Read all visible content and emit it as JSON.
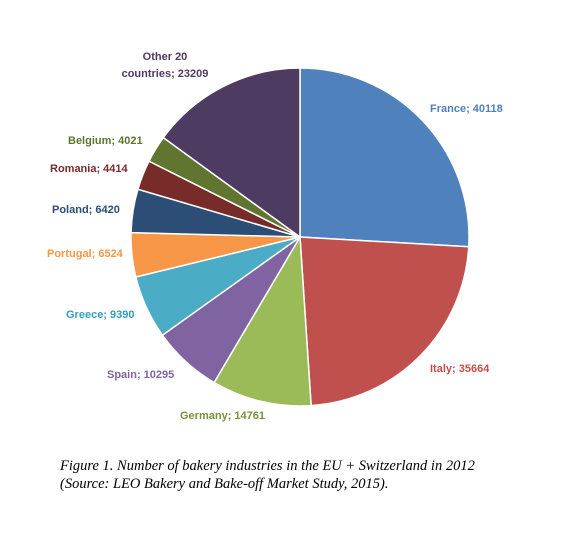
{
  "chart_data": {
    "type": "pie",
    "title": "",
    "slices": [
      {
        "label": "France",
        "value": 40118,
        "color": "#4F81BD",
        "label_color": "#4F81BD",
        "label_text": "France; 40118"
      },
      {
        "label": "Italy",
        "value": 35664,
        "color": "#C0504D",
        "label_color": "#C0504D",
        "label_text": "Italy; 35664"
      },
      {
        "label": "Germany",
        "value": 14761,
        "color": "#9BBB59",
        "label_color": "#76923C",
        "label_text": "Germany; 14761"
      },
      {
        "label": "Spain",
        "value": 10295,
        "color": "#8064A2",
        "label_color": "#8064A2",
        "label_text": "Spain; 10295"
      },
      {
        "label": "Greece",
        "value": 9390,
        "color": "#4BACC6",
        "label_color": "#31A0BE",
        "label_text": "Greece; 9390"
      },
      {
        "label": "Portugal",
        "value": 6524,
        "color": "#F79646",
        "label_color": "#F79646",
        "label_text": "Portugal; 6524"
      },
      {
        "label": "Poland",
        "value": 6420,
        "color": "#2C4D75",
        "label_color": "#2C4D75",
        "label_text": "Poland; 6420"
      },
      {
        "label": "Romania",
        "value": 4414,
        "color": "#772C2A",
        "label_color": "#772C2A",
        "label_text": "Romania; 4414"
      },
      {
        "label": "Belgium",
        "value": 4021,
        "color": "#5F7530",
        "label_color": "#5F7530",
        "label_text": "Belgium; 4021"
      },
      {
        "label": "Other 20 countries",
        "value": 23209,
        "color": "#4D3B62",
        "label_color": "#4D3B62",
        "label_lines": [
          "Other 20",
          "countries; 23209"
        ]
      }
    ],
    "start_angle": "12 o'clock",
    "direction": "clockwise",
    "legend": "none"
  },
  "caption": {
    "line1": "Figure 1. Number of bakery industries in the EU + Switzerland in 2012",
    "line2": "(Source: LEO Bakery and Bake-off Market Study, 2015)."
  }
}
